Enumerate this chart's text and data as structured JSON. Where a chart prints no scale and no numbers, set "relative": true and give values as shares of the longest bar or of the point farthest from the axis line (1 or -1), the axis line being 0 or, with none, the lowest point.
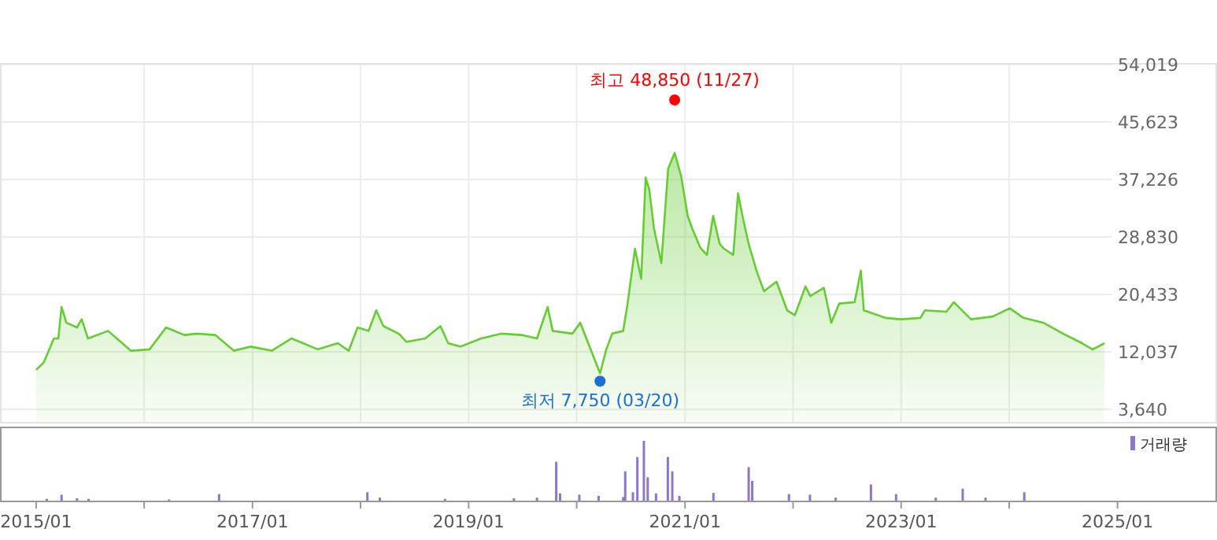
{
  "chart_data": [
    {
      "type": "area",
      "tick_labels": "y",
      "grid": true,
      "xlim": [
        "2014-09-01",
        "2025-12-03"
      ],
      "xticks": [
        {
          "value": "2016-01-01",
          "label": null
        },
        {
          "value": "2017-01-01",
          "label": null
        },
        {
          "value": "2018-01-01",
          "label": null
        },
        {
          "value": "2019-01-01",
          "label": null
        },
        {
          "value": "2020-01-01",
          "label": null
        },
        {
          "value": "2021-01-01",
          "label": null
        },
        {
          "value": "2022-01-01",
          "label": null
        },
        {
          "value": "2023-01-01",
          "label": null
        },
        {
          "value": "2024-01-01",
          "label": null
        }
      ],
      "ylim": [
        1800,
        54019
      ],
      "yticks": [
        {
          "value": 3640,
          "label": "3,640"
        },
        {
          "value": 12037,
          "label": "12,037"
        },
        {
          "value": 20433,
          "label": "20,433"
        },
        {
          "value": 28830,
          "label": "28,830"
        },
        {
          "value": 37226,
          "label": "37,226"
        },
        {
          "value": 45623,
          "label": "45,623"
        },
        {
          "value": 54019,
          "label": "54,019"
        }
      ],
      "annotations": [
        {
          "text": "최고 48,850 (11/27)",
          "x": "2020-11-27",
          "y": 48850
        },
        {
          "text": "최저 7,750 (03/20)",
          "x": "2020-03-20",
          "y": 7750
        }
      ],
      "series": [
        {
          "color": "#66cc33",
          "x": [
            "2015-01-01",
            "2015-01-27",
            "2015-03-02",
            "2015-03-17",
            "2015-03-28",
            "2015-04-13",
            "2015-05-19",
            "2015-06-04",
            "2015-06-25",
            "2015-09-01",
            "2015-11-17",
            "2016-01-19",
            "2016-03-15",
            "2016-05-16",
            "2016-06-27",
            "2016-08-28",
            "2016-10-30",
            "2016-12-26",
            "2017-03-07",
            "2017-05-13",
            "2017-08-10",
            "2017-10-16",
            "2017-11-22",
            "2017-12-22",
            "2018-01-28",
            "2018-02-23",
            "2018-03-19",
            "2018-05-10",
            "2018-06-05",
            "2018-08-07",
            "2018-09-28",
            "2018-10-24",
            "2018-12-04",
            "2019-02-12",
            "2019-04-22",
            "2019-06-29",
            "2019-08-20",
            "2019-09-25",
            "2019-10-12",
            "2019-12-18",
            "2020-01-13",
            "2020-03-20",
            "2020-04-10",
            "2020-04-30",
            "2020-06-06",
            "2020-06-21",
            "2020-07-16",
            "2020-08-06",
            "2020-08-21",
            "2020-09-02",
            "2020-09-18",
            "2020-10-13",
            "2020-11-05",
            "2020-11-27",
            "2020-12-19",
            "2021-01-10",
            "2021-01-25",
            "2021-02-21",
            "2021-03-16",
            "2021-04-06",
            "2021-04-28",
            "2021-05-13",
            "2021-06-13",
            "2021-06-29",
            "2021-07-15",
            "2021-08-04",
            "2021-09-01",
            "2021-09-25",
            "2021-11-06",
            "2021-12-12",
            "2022-01-07",
            "2022-02-12",
            "2022-02-28",
            "2022-04-15",
            "2022-05-10",
            "2022-06-06",
            "2022-07-28",
            "2022-08-18",
            "2022-08-28",
            "2022-11-09",
            "2023-01-01",
            "2023-03-07",
            "2023-03-22",
            "2023-06-03",
            "2023-06-28",
            "2023-08-25",
            "2023-11-06",
            "2024-01-03",
            "2024-02-18",
            "2024-04-25",
            "2024-07-01",
            "2024-09-03",
            "2024-10-09",
            "2024-11-18"
          ],
          "values": [
            9400,
            10500,
            14000,
            14000,
            18600,
            16300,
            15600,
            16800,
            14000,
            15100,
            12200,
            12400,
            15600,
            14500,
            14700,
            14500,
            12200,
            12800,
            12200,
            14000,
            12400,
            13300,
            12200,
            15600,
            15100,
            18100,
            15800,
            14700,
            13500,
            14000,
            15800,
            13300,
            12800,
            14000,
            14700,
            14500,
            14000,
            18600,
            15100,
            14700,
            16300,
            8900,
            12400,
            14700,
            15100,
            19100,
            27100,
            22700,
            37500,
            35800,
            30100,
            25000,
            38800,
            41100,
            37700,
            31900,
            30100,
            27300,
            26200,
            31900,
            27800,
            27100,
            26200,
            35200,
            31700,
            27800,
            23700,
            20900,
            22300,
            18100,
            17400,
            21600,
            20200,
            21400,
            16300,
            19100,
            19300,
            23900,
            18100,
            17000,
            16800,
            17000,
            18100,
            17900,
            19300,
            16800,
            17200,
            18400,
            17000,
            16300,
            14700,
            13300,
            12400,
            13300
          ]
        }
      ]
    },
    {
      "type": "bar",
      "relative": true,
      "tick_labels": "x",
      "legend": "top right",
      "xlim": [
        "2014-09-01",
        "2025-12-03"
      ],
      "xticks": [
        {
          "value": "2015-01-01",
          "label": "2015/01"
        },
        {
          "value": "2016-01-01",
          "label": null
        },
        {
          "value": "2017-01-01",
          "label": "2017/01"
        },
        {
          "value": "2018-01-01",
          "label": null
        },
        {
          "value": "2019-01-01",
          "label": "2019/01"
        },
        {
          "value": "2020-01-01",
          "label": null
        },
        {
          "value": "2021-01-01",
          "label": "2021/01"
        },
        {
          "value": "2022-01-01",
          "label": null
        },
        {
          "value": "2023-01-01",
          "label": "2023/01"
        },
        {
          "value": "2024-01-01",
          "label": null
        },
        {
          "value": "2025-01-01",
          "label": "2025/01"
        }
      ],
      "series": [
        {
          "name": "거래량",
          "color": "#8e76c8",
          "x": [
            "2015-02-06",
            "2015-03-28",
            "2015-05-19",
            "2015-06-27",
            "2016-03-25",
            "2016-09-10",
            "2018-01-24",
            "2018-03-07",
            "2018-10-13",
            "2019-06-03",
            "2019-08-20",
            "2019-10-24",
            "2019-11-06",
            "2020-01-10",
            "2020-03-15",
            "2020-06-06",
            "2020-06-13",
            "2020-07-09",
            "2020-07-24",
            "2020-08-15",
            "2020-08-28",
            "2020-09-25",
            "2020-11-04",
            "2020-11-19",
            "2020-12-13",
            "2021-04-07",
            "2021-08-04",
            "2021-08-16",
            "2021-12-18",
            "2022-02-27",
            "2022-05-25",
            "2022-09-21",
            "2022-12-15",
            "2023-04-28",
            "2023-07-28",
            "2023-10-13",
            "2024-02-21"
          ],
          "values": [
            0.03,
            0.1,
            0.04,
            0.03,
            0.02,
            0.11,
            0.14,
            0.05,
            0.03,
            0.04,
            0.05,
            0.65,
            0.12,
            0.1,
            0.08,
            0.06,
            0.49,
            0.14,
            0.73,
            1,
            0.39,
            0.12,
            0.73,
            0.49,
            0.08,
            0.13,
            0.56,
            0.33,
            0.11,
            0.1,
            0.05,
            0.27,
            0.11,
            0.05,
            0.2,
            0.05,
            0.14
          ]
        }
      ]
    }
  ]
}
